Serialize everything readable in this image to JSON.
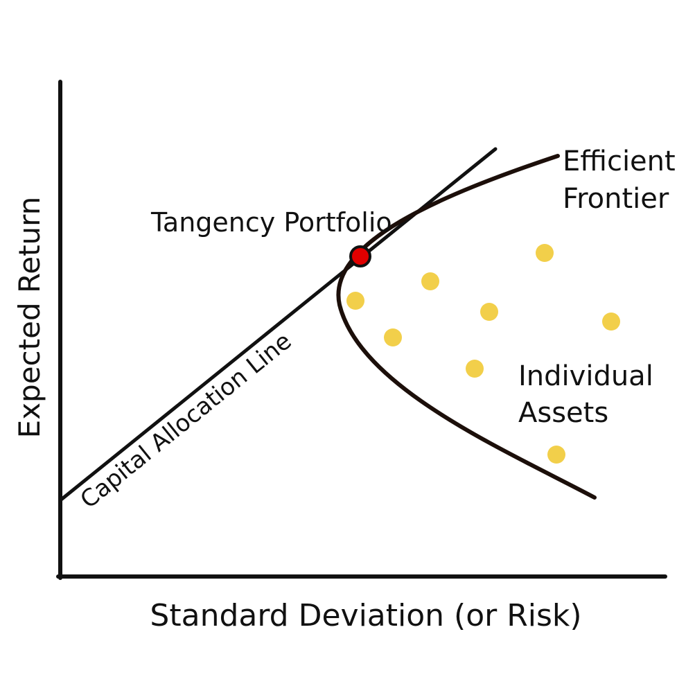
{
  "diagram": {
    "y_axis_label": "Expected Return",
    "x_axis_label": "Standard Deviation (or Risk)",
    "frontier_label_line1": "Efficient",
    "frontier_label_line2": "Frontier",
    "tangency_label": "Tangency Portfolio",
    "cal_label": "Capital Allocation Line",
    "assets_label_line1": "Individual",
    "assets_label_line2": "Assets",
    "colors": {
      "ink": "#111111",
      "frontier": "#1c0f0a",
      "tangency_point": "#e00000",
      "asset_point": "#f2cf4a"
    }
  }
}
